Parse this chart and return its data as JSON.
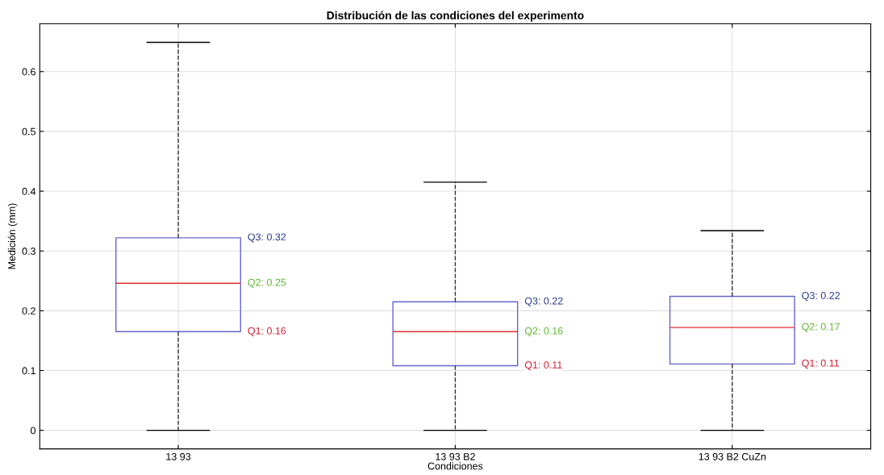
{
  "chart_data": {
    "type": "box",
    "title": "Distribución de las condiciones del experimento",
    "xlabel": "Condiciones",
    "ylabel": "Medición (mm)",
    "categories": [
      "13 93",
      "13 93 B2",
      "13 93 B2 CuZn"
    ],
    "series": [
      {
        "color": "#6666cc",
        "boxes": [
          {
            "low": 0,
            "q1": 0.165,
            "median": 0.246,
            "q3": 0.322,
            "high": 0.649
          },
          {
            "low": 0,
            "q1": 0.108,
            "median": 0.165,
            "q3": 0.215,
            "high": 0.415
          },
          {
            "low": 0,
            "q1": 0.111,
            "median": 0.172,
            "q3": 0.224,
            "high": 0.334
          }
        ]
      }
    ],
    "ylim": [
      -0.031,
      0.68
    ],
    "yticks": [
      0,
      0.1,
      0.2,
      0.3,
      0.4,
      0.5,
      0.6
    ],
    "grid": true,
    "annotations": [
      "Q3: 0.32",
      "Q2: 0.25",
      "Q1: 0.16",
      "Q3: 0.22",
      "Q2: 0.16",
      "Q1: 0.11",
      "Q3: 0.22",
      "Q2: 0.17",
      "Q1: 0.11"
    ]
  }
}
